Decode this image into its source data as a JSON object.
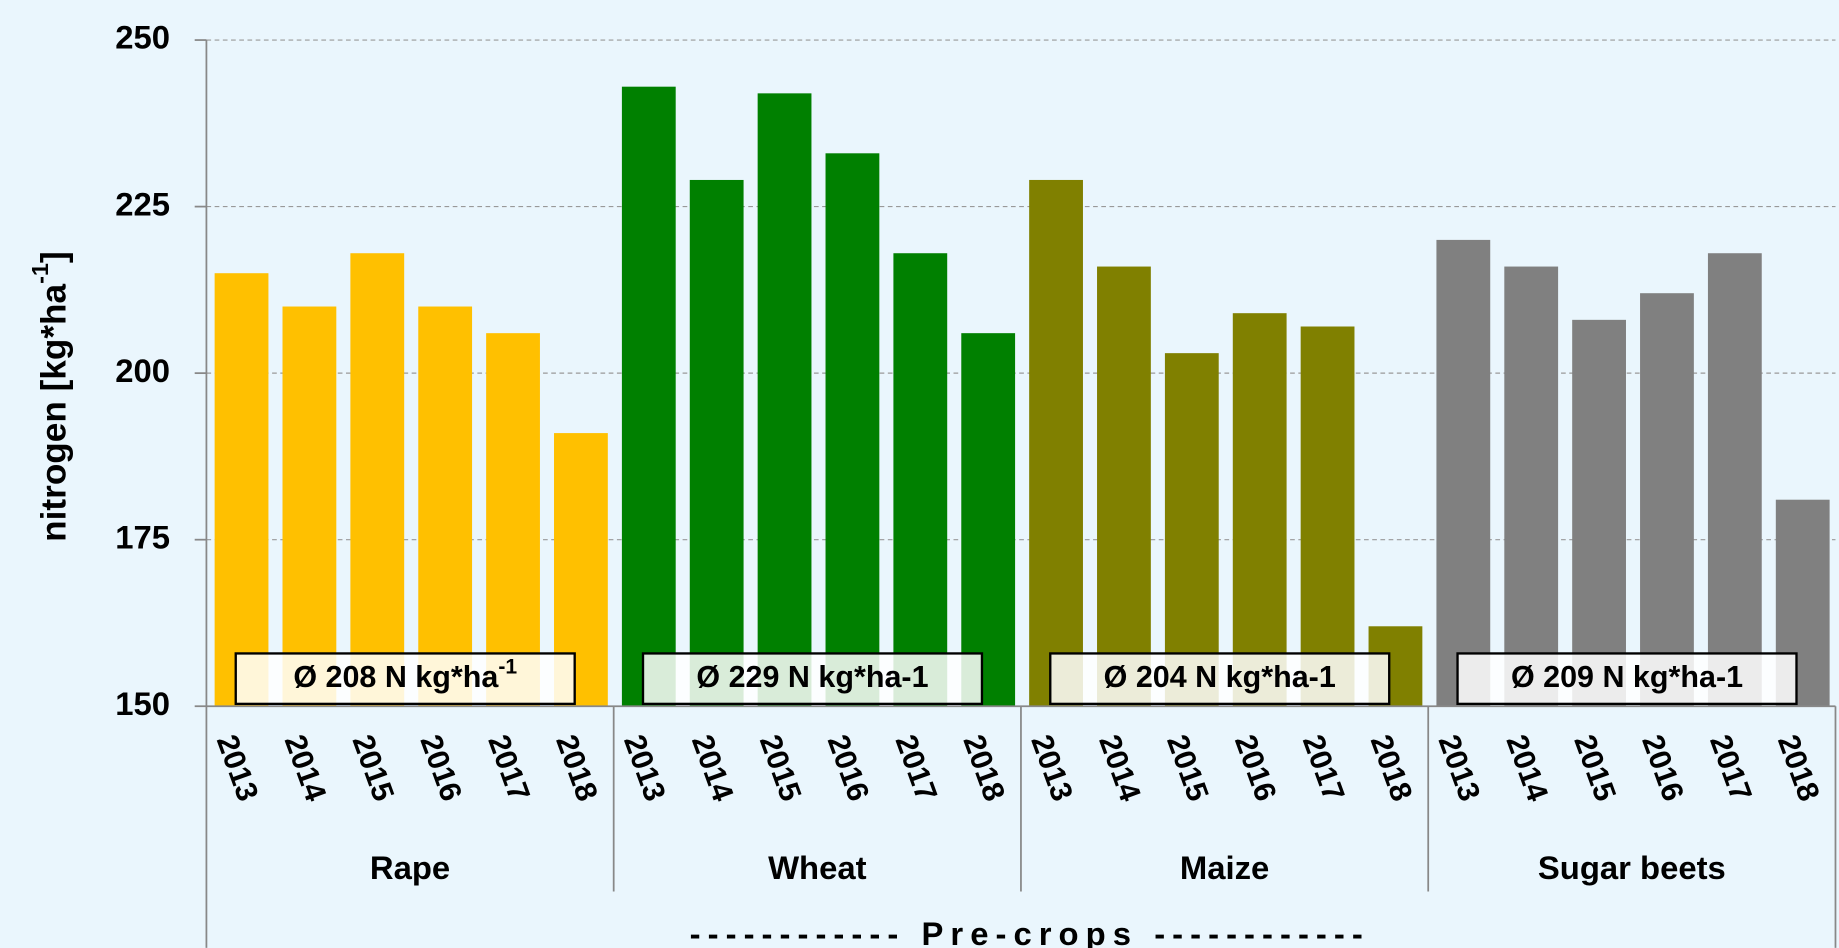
{
  "chart_data": {
    "type": "grouped_bar",
    "y_label": {
      "text": "nitrogen [kg*ha",
      "sup": "-1",
      "end": "]"
    },
    "x_label": "------------ Pre-crops ------------",
    "categories": [
      "2013",
      "2014",
      "2015",
      "2016",
      "2017",
      "2018"
    ],
    "groups": [
      {
        "name": "Rape",
        "color": "#ffc000",
        "values": [
          215,
          210,
          218,
          210,
          206,
          191
        ],
        "annotation": {
          "text": "Ø 208  N kg*ha",
          "sup": "-1"
        }
      },
      {
        "name": "Wheat",
        "color": "#008000",
        "values": [
          243,
          229,
          242,
          233,
          218,
          206
        ],
        "annotation": {
          "text": "Ø 229 N kg*ha-1"
        }
      },
      {
        "name": "Maize",
        "color": "#808000",
        "values": [
          229,
          216,
          203,
          209,
          207,
          162
        ],
        "annotation": {
          "text": "Ø 204 N kg*ha-1"
        }
      },
      {
        "name": "Sugar beets",
        "color": "#808080",
        "values": [
          220,
          216,
          208,
          212,
          218,
          181
        ],
        "annotation": {
          "text": "Ø 209 N kg*ha-1"
        }
      }
    ],
    "ylim": [
      150,
      250
    ],
    "yticks": [
      150,
      175,
      200,
      225,
      250
    ],
    "grid": true
  }
}
